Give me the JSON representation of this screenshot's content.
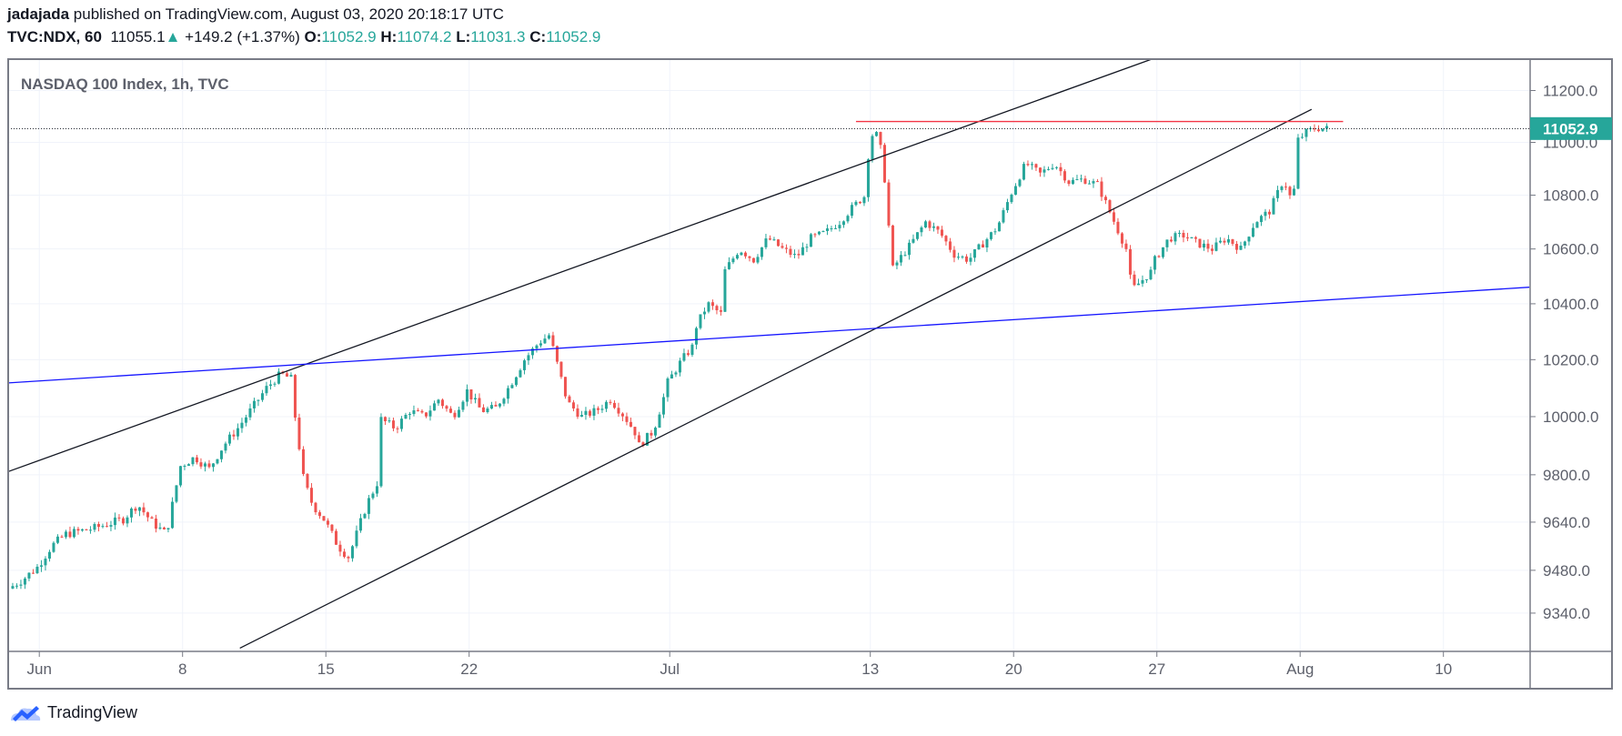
{
  "header": {
    "author": "jadajada",
    "published": "published on TradingView.com, August 03, 2020 20:18:17 UTC",
    "symbol": "TVC:NDX, 60",
    "last": "11055.1",
    "change": "+149.2 (+1.37%)",
    "o_label": "O:",
    "o": "11052.9",
    "h_label": "H:",
    "h": "11074.2",
    "l_label": "L:",
    "l": "11031.3",
    "c_label": "C:",
    "c": "11052.9"
  },
  "footer": {
    "logo_text": "TradingView"
  },
  "colors": {
    "up": "#26a69a",
    "down": "#ef5350",
    "channel": "#131722",
    "support": "#1515ff",
    "resistance": "#f23645",
    "logo": "#2962ff"
  },
  "chart_data": {
    "type": "candlestick",
    "title": "NASDAQ 100 Index, 1h, TVC",
    "interval": "1h",
    "scale": "log",
    "ylim": [
      9230,
      11330
    ],
    "y_ticks": [
      "11200.0",
      "11000.0",
      "10800.0",
      "10600.0",
      "10400.0",
      "10200.0",
      "10000.0",
      "9800.0",
      "9640.0",
      "9480.0",
      "9340.0"
    ],
    "y_tick_values": [
      11200,
      11000,
      10800,
      10600,
      10400,
      10200,
      10000,
      9800,
      9640,
      9480,
      9340
    ],
    "x_ticks": [
      {
        "label": "Jun",
        "day": 0
      },
      {
        "label": "8",
        "day": 5
      },
      {
        "label": "15",
        "day": 10
      },
      {
        "label": "22",
        "day": 15
      },
      {
        "label": "Jul",
        "day": 22
      },
      {
        "label": "13",
        "day": 29
      },
      {
        "label": "20",
        "day": 34
      },
      {
        "label": "27",
        "day": 39
      },
      {
        "label": "Aug",
        "day": 44
      },
      {
        "label": "10",
        "day": 49
      }
    ],
    "x_unit": "trading day index (0 = Jun 1)",
    "x_range": [
      -1.1,
      52.0
    ],
    "last_price": 11052.9,
    "last_price_label": "11052.9",
    "price_path": [
      [
        -1,
        9420
      ],
      [
        -0.5,
        9450
      ],
      [
        0,
        9490
      ],
      [
        0.5,
        9560
      ],
      [
        1,
        9600
      ],
      [
        2,
        9620
      ],
      [
        3,
        9650
      ],
      [
        3.5,
        9700
      ],
      [
        4,
        9640
      ],
      [
        4.5,
        9600
      ],
      [
        5,
        9830
      ],
      [
        5.5,
        9860
      ],
      [
        6,
        9820
      ],
      [
        6.5,
        9900
      ],
      [
        7,
        9960
      ],
      [
        7.5,
        10030
      ],
      [
        8,
        10100
      ],
      [
        8.5,
        10150
      ],
      [
        8.9,
        10130
      ],
      [
        9,
        10000
      ],
      [
        9.3,
        9780
      ],
      [
        9.6,
        9700
      ],
      [
        10,
        9650
      ],
      [
        10.5,
        9560
      ],
      [
        10.9,
        9520
      ],
      [
        11,
        9560
      ],
      [
        11.5,
        9700
      ],
      [
        11.9,
        9780
      ],
      [
        12,
        9990
      ],
      [
        12.5,
        9960
      ],
      [
        13,
        10020
      ],
      [
        13.5,
        10000
      ],
      [
        14,
        10060
      ],
      [
        14.5,
        10000
      ],
      [
        15,
        10090
      ],
      [
        15.5,
        10020
      ],
      [
        16,
        10030
      ],
      [
        16.5,
        10110
      ],
      [
        17,
        10200
      ],
      [
        17.5,
        10260
      ],
      [
        17.9,
        10290
      ],
      [
        18,
        10240
      ],
      [
        18.5,
        10050
      ],
      [
        19,
        10000
      ],
      [
        19.5,
        10020
      ],
      [
        20,
        10060
      ],
      [
        20.5,
        10000
      ],
      [
        20.9,
        9940
      ],
      [
        21,
        9900
      ],
      [
        21.5,
        9950
      ],
      [
        21.9,
        10080
      ],
      [
        22,
        10120
      ],
      [
        22.5,
        10200
      ],
      [
        22.9,
        10250
      ],
      [
        23,
        10320
      ],
      [
        23.4,
        10400
      ],
      [
        23.9,
        10360
      ],
      [
        24,
        10520
      ],
      [
        24.5,
        10600
      ],
      [
        25,
        10560
      ],
      [
        25.5,
        10640
      ],
      [
        26,
        10600
      ],
      [
        26.5,
        10570
      ],
      [
        27,
        10640
      ],
      [
        27.5,
        10660
      ],
      [
        28,
        10700
      ],
      [
        28.5,
        10760
      ],
      [
        28.9,
        10800
      ],
      [
        29,
        10950
      ],
      [
        29.2,
        11060
      ],
      [
        29.5,
        10950
      ],
      [
        29.7,
        10700
      ],
      [
        29.9,
        10480
      ],
      [
        30,
        10550
      ],
      [
        30.5,
        10620
      ],
      [
        31,
        10700
      ],
      [
        31.5,
        10660
      ],
      [
        32,
        10580
      ],
      [
        32.5,
        10560
      ],
      [
        33,
        10620
      ],
      [
        33.5,
        10680
      ],
      [
        34,
        10810
      ],
      [
        34.5,
        10920
      ],
      [
        35,
        10880
      ],
      [
        35.5,
        10920
      ],
      [
        36,
        10850
      ],
      [
        36.5,
        10860
      ],
      [
        37,
        10840
      ],
      [
        37.5,
        10720
      ],
      [
        38,
        10600
      ],
      [
        38.2,
        10450
      ],
      [
        38.5,
        10480
      ],
      [
        38.9,
        10520
      ],
      [
        39,
        10560
      ],
      [
        39.5,
        10640
      ],
      [
        40,
        10650
      ],
      [
        40.5,
        10620
      ],
      [
        41,
        10600
      ],
      [
        41.5,
        10640
      ],
      [
        42,
        10600
      ],
      [
        42.5,
        10700
      ],
      [
        43,
        10740
      ],
      [
        43.5,
        10860
      ],
      [
        43.8,
        10770
      ],
      [
        43.95,
        10900
      ],
      [
        44,
        11010
      ],
      [
        44.3,
        11040
      ],
      [
        44.6,
        11055
      ],
      [
        44.9,
        11052.9
      ]
    ],
    "drawings": [
      {
        "name": "upper-channel-line",
        "color": "channel",
        "from": [
          -1.08,
          9811
        ],
        "to": [
          38.8,
          11322
        ]
      },
      {
        "name": "lower-channel-line",
        "color": "channel",
        "from": [
          7.0,
          9227
        ],
        "to": [
          44.4,
          11127
        ]
      },
      {
        "name": "support-trend-line",
        "color": "support",
        "from": [
          -1.08,
          10118
        ],
        "to": [
          52.0,
          10460
        ]
      },
      {
        "name": "resistance-line",
        "color": "resistance",
        "from": [
          28.5,
          11080
        ],
        "to": [
          45.5,
          11080
        ]
      }
    ]
  }
}
